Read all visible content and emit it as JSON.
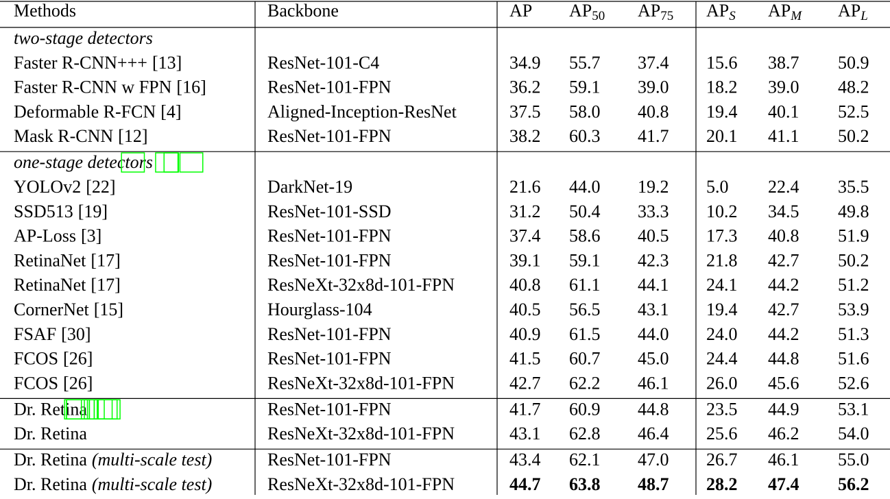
{
  "header": {
    "columns": [
      {
        "text": "Methods"
      },
      {
        "text": "Backbone"
      },
      {
        "text": "AP"
      },
      {
        "text": "AP",
        "sub": "50"
      },
      {
        "text": "AP",
        "sub": "75"
      },
      {
        "text": "AP",
        "sub": "S",
        "sub_italic": true
      },
      {
        "text": "AP",
        "sub": "M",
        "sub_italic": true
      },
      {
        "text": "AP",
        "sub": "L",
        "sub_italic": true
      }
    ]
  },
  "groups": [
    {
      "title": "two-stage detectors",
      "rows": [
        {
          "method": "Faster R-CNN+++",
          "ref": "[13]",
          "backbone": "ResNet-101-C4",
          "values": [
            "34.9",
            "55.7",
            "37.4",
            "15.6",
            "38.7",
            "50.9"
          ]
        },
        {
          "method": "Faster R-CNN w FPN",
          "ref": "[16]",
          "backbone": "ResNet-101-FPN",
          "values": [
            "36.2",
            "59.1",
            "39.0",
            "18.2",
            "39.0",
            "48.2"
          ]
        },
        {
          "method": "Deformable R-FCN",
          "ref": "[4]",
          "backbone": "Aligned-Inception-ResNet",
          "values": [
            "37.5",
            "58.0",
            "40.8",
            "19.4",
            "40.1",
            "52.5"
          ]
        },
        {
          "method": "Mask R-CNN",
          "ref": "[12]",
          "backbone": "ResNet-101-FPN",
          "values": [
            "38.2",
            "60.3",
            "41.7",
            "20.1",
            "41.1",
            "50.2"
          ]
        }
      ]
    },
    {
      "title": "one-stage detectors",
      "rows": [
        {
          "method": "YOLOv2",
          "ref": "[22]",
          "backbone": "DarkNet-19",
          "values": [
            "21.6",
            "44.0",
            "19.2",
            "5.0",
            "22.4",
            "35.5"
          ]
        },
        {
          "method": "SSD513",
          "ref": "[19]",
          "backbone": "ResNet-101-SSD",
          "values": [
            "31.2",
            "50.4",
            "33.3",
            "10.2",
            "34.5",
            "49.8"
          ]
        },
        {
          "method": "AP-Loss",
          "ref": "[3]",
          "backbone": "ResNet-101-FPN",
          "values": [
            "37.4",
            "58.6",
            "40.5",
            "17.3",
            "40.8",
            "51.9"
          ]
        },
        {
          "method": "RetinaNet",
          "ref": "[17]",
          "backbone": "ResNet-101-FPN",
          "values": [
            "39.1",
            "59.1",
            "42.3",
            "21.8",
            "42.7",
            "50.2"
          ]
        },
        {
          "method": "RetinaNet",
          "ref": "[17]",
          "backbone": "ResNeXt-32x8d-101-FPN",
          "values": [
            "40.8",
            "61.1",
            "44.1",
            "24.1",
            "44.2",
            "51.2"
          ]
        },
        {
          "method": "CornerNet",
          "ref": "[15]",
          "backbone": "Hourglass-104",
          "values": [
            "40.5",
            "56.5",
            "43.1",
            "19.4",
            "42.7",
            "53.9"
          ]
        },
        {
          "method": "FSAF",
          "ref": "[30]",
          "backbone": "ResNet-101-FPN",
          "values": [
            "40.9",
            "61.5",
            "44.0",
            "24.0",
            "44.2",
            "51.3"
          ]
        },
        {
          "method": "FCOS",
          "ref": "[26]",
          "backbone": "ResNet-101-FPN",
          "values": [
            "41.5",
            "60.7",
            "45.0",
            "24.4",
            "44.8",
            "51.6"
          ]
        },
        {
          "method": "FCOS",
          "ref": "[26]",
          "backbone": "ResNeXt-32x8d-101-FPN",
          "values": [
            "42.7",
            "62.2",
            "46.1",
            "26.0",
            "45.6",
            "52.6"
          ]
        }
      ]
    },
    {
      "rows": [
        {
          "method": "Dr. Retina",
          "backbone": "ResNet-101-FPN",
          "values": [
            "41.7",
            "60.9",
            "44.8",
            "23.5",
            "44.9",
            "53.1"
          ]
        },
        {
          "method": "Dr. Retina",
          "backbone": "ResNeXt-32x8d-101-FPN",
          "values": [
            "43.1",
            "62.8",
            "46.4",
            "25.6",
            "46.2",
            "54.0"
          ]
        }
      ]
    },
    {
      "rows": [
        {
          "method": "Dr. Retina",
          "note": "(multi-scale test)",
          "backbone": "ResNet-101-FPN",
          "values": [
            "43.4",
            "62.1",
            "47.0",
            "26.7",
            "46.1",
            "55.0"
          ]
        },
        {
          "method": "Dr. Retina",
          "note": "(multi-scale test)",
          "backbone": "ResNeXt-32x8d-101-FPN",
          "values": [
            "44.7",
            "63.8",
            "48.7",
            "28.2",
            "47.4",
            "56.2"
          ],
          "bold": true
        }
      ]
    }
  ]
}
